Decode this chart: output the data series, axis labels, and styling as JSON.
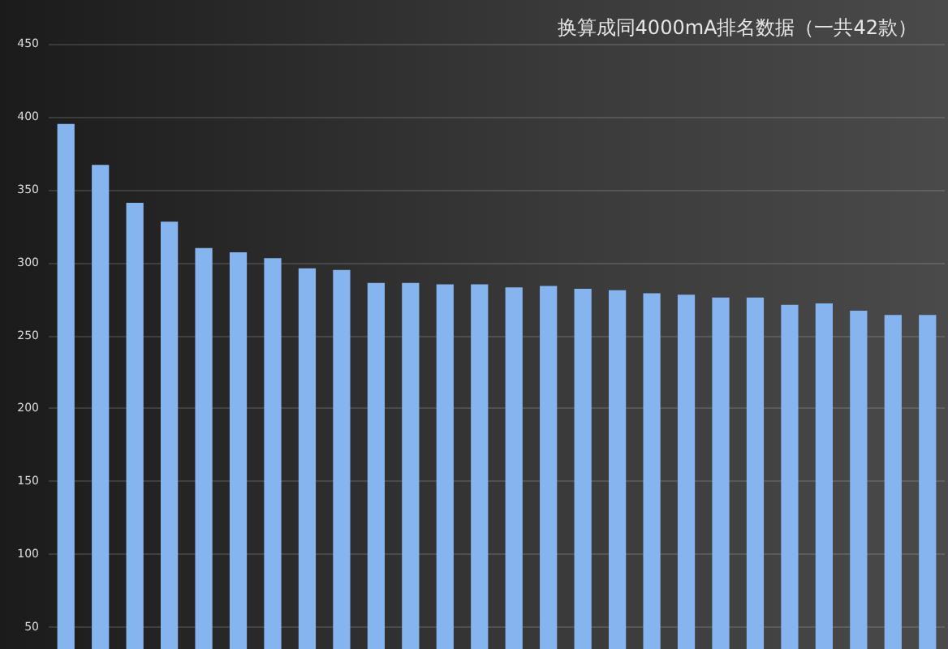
{
  "chart_data": {
    "type": "bar",
    "title": "换算成同4000mA排名数据（一共42款）",
    "categories": [
      null,
      null,
      null,
      null,
      null,
      null,
      null,
      null,
      null,
      null,
      null,
      null,
      null,
      null,
      null,
      null,
      null,
      null,
      null,
      null,
      null,
      null,
      null,
      null,
      null,
      null
    ],
    "values": [
      395,
      367,
      341,
      328,
      310,
      307,
      303,
      296,
      295,
      286,
      286,
      285,
      285,
      283,
      284,
      282,
      281,
      279,
      278,
      276,
      276,
      271,
      272,
      267,
      264,
      264
    ],
    "color": "#86b4ef",
    "ylim": [
      35,
      450
    ],
    "yticks": [
      50,
      100,
      150,
      200,
      250,
      300,
      350,
      400,
      450
    ],
    "grid": "y",
    "tick_labels": "y"
  }
}
